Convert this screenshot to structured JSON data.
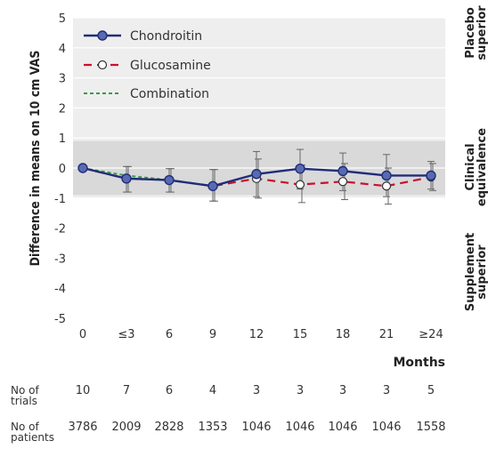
{
  "chart_data": {
    "type": "line",
    "ylabel": "Difference in means on 10 cm VAS",
    "xlabel": "Months",
    "categories": [
      "0",
      "≤3",
      "6",
      "9",
      "12",
      "15",
      "18",
      "21",
      "≥24"
    ],
    "ylim": [
      -5,
      5
    ],
    "yticks": [
      5,
      4,
      3,
      2,
      1,
      0,
      -1,
      -2,
      -3,
      -4,
      -5
    ],
    "equivalence_band": [
      -0.9,
      0.9
    ],
    "series": [
      {
        "name": "Chondroitin",
        "color": "#1f2d7a",
        "marker": "filled-circle",
        "values": [
          0,
          -0.35,
          -0.4,
          -0.6,
          -0.2,
          -0.02,
          -0.1,
          -0.25,
          -0.25
        ],
        "ci_low": [
          0,
          -0.8,
          -0.8,
          -1.1,
          -0.95,
          -0.7,
          -0.75,
          -0.95,
          -0.7
        ],
        "ci_high": [
          0,
          0.05,
          -0.02,
          -0.05,
          0.55,
          0.62,
          0.5,
          0.45,
          0.22
        ]
      },
      {
        "name": "Glucosamine",
        "color": "#c8102e",
        "marker": "open-circle",
        "values": [
          0,
          -0.35,
          -0.4,
          -0.6,
          -0.35,
          -0.55,
          -0.45,
          -0.6,
          -0.3
        ],
        "ci_low": [
          0,
          -0.8,
          -0.8,
          -1.1,
          -1.0,
          -1.15,
          -1.05,
          -1.2,
          -0.75
        ],
        "ci_high": [
          0,
          0.05,
          -0.02,
          -0.05,
          0.3,
          0.1,
          0.15,
          0.0,
          0.15
        ]
      },
      {
        "name": "Combination",
        "color": "#3a9a4a",
        "marker": "none",
        "values": [
          0,
          -0.25,
          -0.4,
          null,
          null,
          null,
          null,
          null,
          null
        ]
      }
    ],
    "zones": [
      {
        "line1": "Placebo",
        "line2": "superior"
      },
      {
        "line1": "Clinical",
        "line2": "equivalence"
      },
      {
        "line1": "Supplement",
        "line2": "superior"
      }
    ]
  },
  "table": {
    "trials_label": [
      "No of",
      "trials"
    ],
    "patients_label": [
      "No of",
      "patients"
    ],
    "trials": [
      "10",
      "7",
      "6",
      "4",
      "3",
      "3",
      "3",
      "3",
      "5"
    ],
    "patients": [
      "3786",
      "2009",
      "2828",
      "1353",
      "1046",
      "1046",
      "1046",
      "1046",
      "1558"
    ]
  }
}
